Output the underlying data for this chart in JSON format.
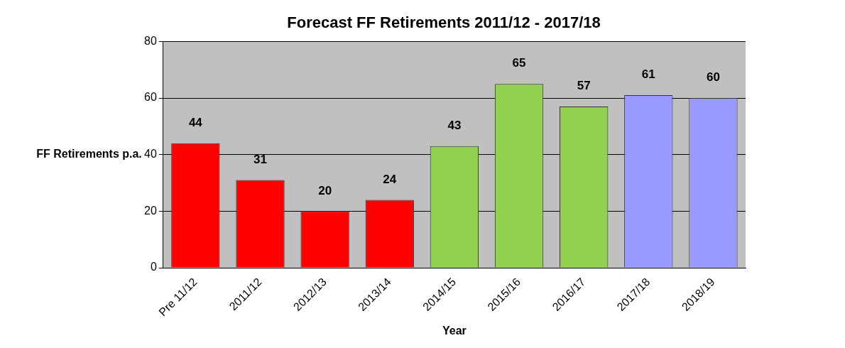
{
  "chart_data": {
    "type": "bar",
    "title": "Forecast FF Retirements 2011/12 - 2017/18",
    "xlabel": "Year",
    "ylabel": "FF Retirements p.a.",
    "categories": [
      "Pre 11/12",
      "2011/12",
      "2012/13",
      "2013/14",
      "2014/15",
      "2015/16",
      "2016/17",
      "2017/18",
      "2018/19"
    ],
    "values": [
      44,
      31,
      20,
      24,
      43,
      65,
      57,
      61,
      60
    ],
    "colors": [
      "#ff0000",
      "#ff0000",
      "#ff0000",
      "#ff0000",
      "#92d050",
      "#92d050",
      "#92d050",
      "#9999ff",
      "#9999ff"
    ],
    "ylim": [
      0,
      80
    ],
    "yticks": [
      0,
      20,
      40,
      60,
      80
    ],
    "grid": "y",
    "data_labels": true,
    "legend": false
  }
}
